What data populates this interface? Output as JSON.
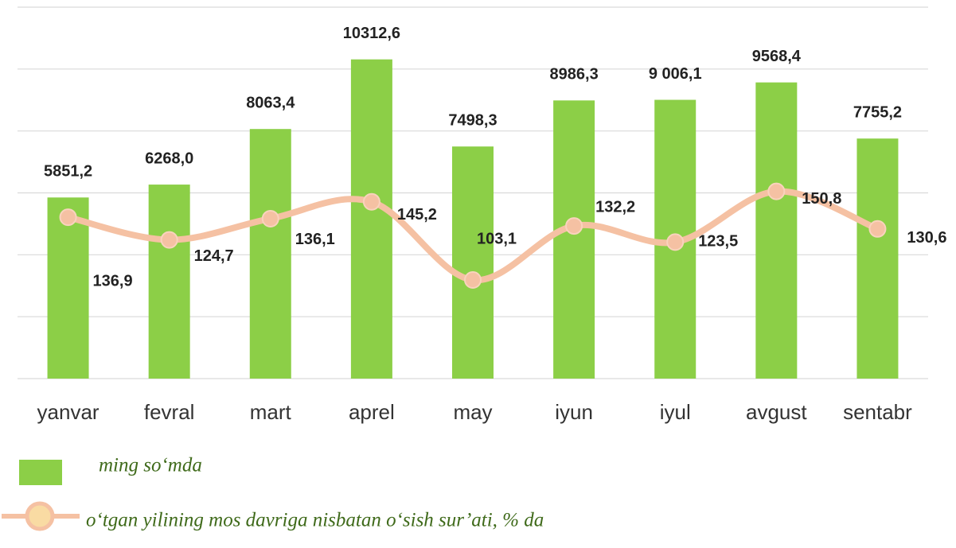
{
  "chart_data": {
    "type": "bar_line",
    "categories": [
      "yanvar",
      "fevral",
      "mart",
      "aprel",
      "may",
      "iyun",
      "iyul",
      "avgust",
      "sentabr"
    ],
    "series": [
      {
        "name": "ming so‘mda",
        "type": "bar",
        "color": "#8ccf47",
        "values": [
          5851.2,
          6268.0,
          8063.4,
          10312.6,
          7498.3,
          8986.3,
          9006.1,
          9568.4,
          7755.2
        ],
        "value_labels": [
          "5851,2",
          "6268,0",
          "8063,4",
          "10312,6",
          "7498,3",
          "8986,3",
          "9 006,1",
          "9568,4",
          "7755,2"
        ]
      },
      {
        "name": "o‘tgan yilining mos davriga nisbatan o‘sish sur’ati, % da",
        "type": "line",
        "axis": "y2",
        "color": "#f5c1a3",
        "values": [
          136.9,
          124.7,
          136.1,
          145.2,
          103.1,
          132.2,
          123.5,
          150.8,
          130.6
        ],
        "value_labels": [
          "136,9",
          "124,7",
          "136,1",
          "145,2",
          "103,1",
          "132,2",
          "123,5",
          "150,8",
          "130,6"
        ]
      }
    ],
    "ylim": [
      0,
      12000
    ],
    "yticks": [
      0,
      2000,
      4000,
      6000,
      8000,
      10000,
      12000
    ],
    "y2lim": [
      50,
      250
    ],
    "grid": true
  }
}
